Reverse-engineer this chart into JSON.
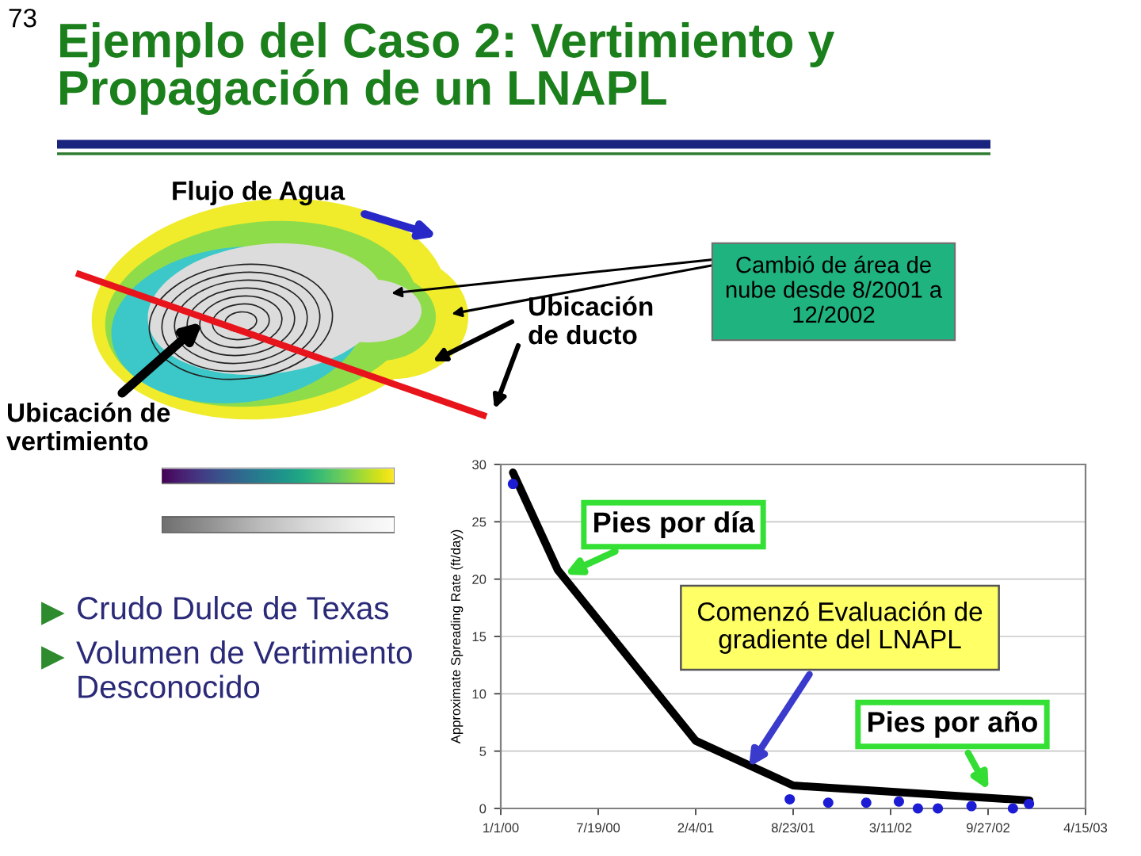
{
  "chart_data": {
    "type": "line",
    "title": "Ejemplo del Caso 2: Vertimiento y Propagación de un LNAPL",
    "ylabel": "Approximate Spreading Rate (ft/day)",
    "series": [
      {
        "color": "#000000",
        "x": [
          "2000-01-26",
          "2000-04-27",
          "2001-02-04",
          "2001-08-23",
          "2002-12-21"
        ],
        "values": [
          29.3,
          20.8,
          5.9,
          2.0,
          0.7
        ]
      },
      {
        "type": "scatter",
        "color": "#1c1cd4",
        "marker": "circle",
        "x": [
          "2000-01-26",
          "2001-08-16",
          "2001-11-03",
          "2002-01-20",
          "2002-03-28",
          "2002-05-06",
          "2002-06-16",
          "2002-08-24",
          "2002-11-17",
          "2002-12-20"
        ],
        "values": [
          28.3,
          0.8,
          0.5,
          0.5,
          0.6,
          0.0,
          0.0,
          0.2,
          0.0,
          0.4
        ]
      }
    ],
    "xlim": [
      "2000-01-01",
      "2003-04-15"
    ],
    "xticks": [
      {
        "value": "2000-01-01",
        "label": "1/1/00"
      },
      {
        "value": "2000-07-19",
        "label": "7/19/00"
      },
      {
        "value": "2001-02-04",
        "label": "2/4/01"
      },
      {
        "value": "2001-08-23",
        "label": "8/23/01"
      },
      {
        "value": "2002-03-11",
        "label": "3/11/02"
      },
      {
        "value": "2002-09-27",
        "label": "9/27/02"
      },
      {
        "value": "2003-04-15",
        "label": "4/15/03"
      }
    ],
    "ylim": [
      0,
      30
    ],
    "yticks": [
      0,
      5,
      10,
      15,
      20,
      25,
      30
    ],
    "grid": "y",
    "line_style": "solid",
    "annotations": [
      "73",
      "Flujo de Agua",
      "Ubicación de ducto",
      "Cambió de área de nube desde 8/2001 a 12/2002",
      "Ubicación de vertimiento",
      "Crudo Dulce de Texas",
      "Volumen de Vertimiento Desconocido",
      {
        "text": "Pies por día",
        "x": "2000-05-11",
        "y": 20.4
      },
      {
        "text": "Comenzó Evaluación de gradiente del LNAPL",
        "x": "2001-05-24",
        "y": 3.6
      },
      {
        "text": "Pies por año",
        "x": "2002-09-28",
        "y": 1.6
      }
    ]
  }
}
